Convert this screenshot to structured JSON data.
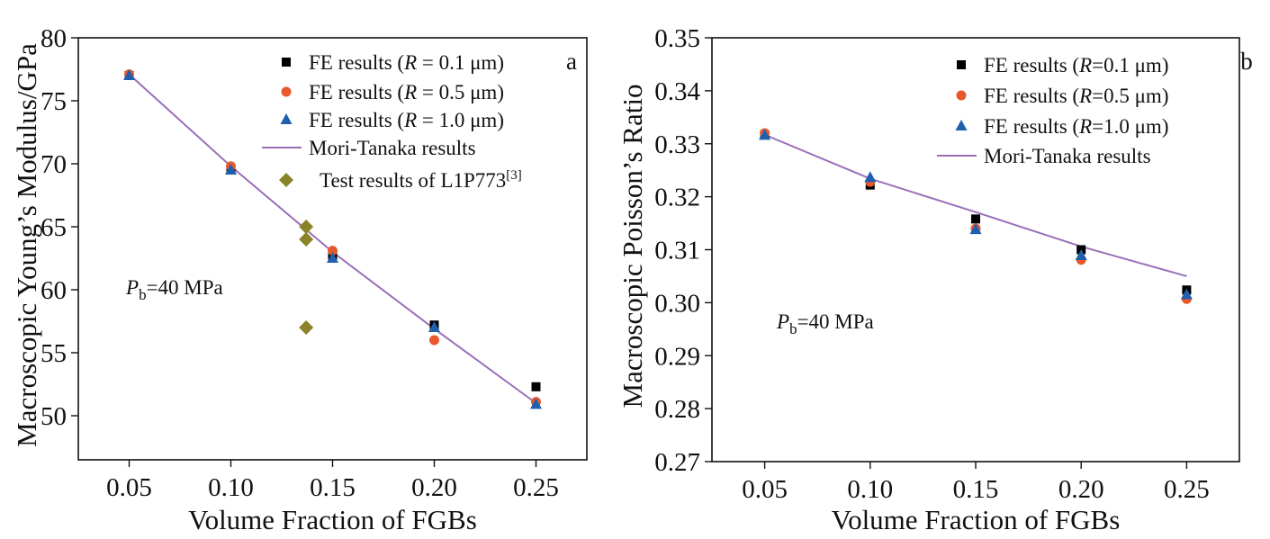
{
  "chart_data": [
    {
      "type": "scatter",
      "panel_label": "a",
      "xlabel": "Volume Fraction of FGBs",
      "ylabel": "Macroscopic Young’s Modulus/GPa",
      "xlim": [
        0.025,
        0.275
      ],
      "ylim": [
        46.5,
        80
      ],
      "xticks": [
        "0.05",
        "0.10",
        "0.15",
        "0.20",
        "0.25"
      ],
      "xtick_values": [
        0.05,
        0.1,
        0.15,
        0.2,
        0.25
      ],
      "yticks": [
        "50",
        "55",
        "60",
        "65",
        "70",
        "75",
        "80"
      ],
      "ytick_values": [
        50,
        55,
        60,
        65,
        70,
        75,
        80
      ],
      "grid": false,
      "legend_position": "top-right",
      "annotation": {
        "main": "P",
        "sub": "b",
        "rest": "=40 MPa",
        "x": 0.05,
        "y": 60.5
      },
      "series": [
        {
          "name": "FE results (R = 0.1 μm)",
          "legend_parts": [
            "FE results (",
            "R",
            " = 0.1 μm)"
          ],
          "marker": "square",
          "color": "#000000",
          "x": [
            0.05,
            0.1,
            0.15,
            0.2,
            0.25
          ],
          "y": [
            77.0,
            69.6,
            62.7,
            57.2,
            52.3
          ]
        },
        {
          "name": "FE results (R = 0.5 μm)",
          "legend_parts": [
            "FE results (",
            "R",
            " = 0.5 μm)"
          ],
          "marker": "circle",
          "color": "#e8582b",
          "x": [
            0.05,
            0.1,
            0.15,
            0.2,
            0.25
          ],
          "y": [
            77.1,
            69.8,
            63.1,
            56.0,
            51.1
          ]
        },
        {
          "name": "FE results (R = 1.0 μm)",
          "legend_parts": [
            "FE results (",
            "R",
            " = 1.0 μm)"
          ],
          "marker": "triangle",
          "color": "#1f5fae",
          "x": [
            0.05,
            0.1,
            0.15,
            0.2,
            0.25
          ],
          "y": [
            77.0,
            69.5,
            62.5,
            57.0,
            50.9
          ]
        },
        {
          "name": "Mori-Tanaka results",
          "legend_parts": [
            "Mori-Tanaka results"
          ],
          "marker": "line",
          "color": "#9a6fb8",
          "x": [
            0.05,
            0.1,
            0.15,
            0.2,
            0.25
          ],
          "y": [
            77.1,
            69.8,
            63.0,
            56.9,
            51.0
          ]
        },
        {
          "name": "Test results of L1P773[3]",
          "legend_parts": [
            "Test results of L1P773",
            "[3]"
          ],
          "marker": "diamond",
          "color": "#8b8329",
          "x": [
            0.137,
            0.137,
            0.137
          ],
          "y": [
            65.0,
            64.0,
            57.0
          ]
        }
      ]
    },
    {
      "type": "scatter",
      "panel_label": "b",
      "xlabel": "Volume Fraction of FGBs",
      "ylabel": "Macroscopic Poisson’s Ratio",
      "xlim": [
        0.025,
        0.275
      ],
      "ylim": [
        0.27,
        0.35
      ],
      "xticks": [
        "0.05",
        "0.10",
        "0.15",
        "0.20",
        "0.25"
      ],
      "xtick_values": [
        0.05,
        0.1,
        0.15,
        0.2,
        0.25
      ],
      "yticks": [
        "0.27",
        "0.28",
        "0.29",
        "0.30",
        "0.31",
        "0.32",
        "0.33",
        "0.34",
        "0.35"
      ],
      "ytick_values": [
        0.27,
        0.28,
        0.29,
        0.3,
        0.31,
        0.32,
        0.33,
        0.34,
        0.35
      ],
      "grid": false,
      "legend_position": "top-right",
      "annotation": {
        "main": "P",
        "sub": "b",
        "rest": "=40 MPa",
        "x": 0.05,
        "y": 0.2965
      },
      "series": [
        {
          "name": "FE results (R=0.1 μm)",
          "legend_parts": [
            "FE results (",
            "R",
            "=0.1 μm)"
          ],
          "marker": "square",
          "color": "#000000",
          "x": [
            0.05,
            0.1,
            0.15,
            0.2,
            0.25
          ],
          "y": [
            0.3317,
            0.3222,
            0.3158,
            0.31,
            0.3024
          ]
        },
        {
          "name": "FE results (R=0.5 μm)",
          "legend_parts": [
            "FE results (",
            "R",
            "=0.5 μm)"
          ],
          "marker": "circle",
          "color": "#e8582b",
          "x": [
            0.05,
            0.1,
            0.15,
            0.2,
            0.25
          ],
          "y": [
            0.332,
            0.3228,
            0.314,
            0.3081,
            0.3007
          ]
        },
        {
          "name": "FE results (R=1.0 μm)",
          "legend_parts": [
            "FE results (",
            "R",
            "=1.0 μm)"
          ],
          "marker": "triangle",
          "color": "#1f5fae",
          "x": [
            0.05,
            0.1,
            0.15,
            0.2,
            0.25
          ],
          "y": [
            0.3316,
            0.3236,
            0.3138,
            0.3089,
            0.3015
          ]
        },
        {
          "name": "Mori-Tanaka results",
          "legend_parts": [
            "Mori-Tanaka results"
          ],
          "marker": "line",
          "color": "#9a6fb8",
          "x": [
            0.05,
            0.1,
            0.15,
            0.2,
            0.25
          ],
          "y": [
            0.3317,
            0.3234,
            0.3171,
            0.3106,
            0.305
          ]
        }
      ]
    }
  ]
}
